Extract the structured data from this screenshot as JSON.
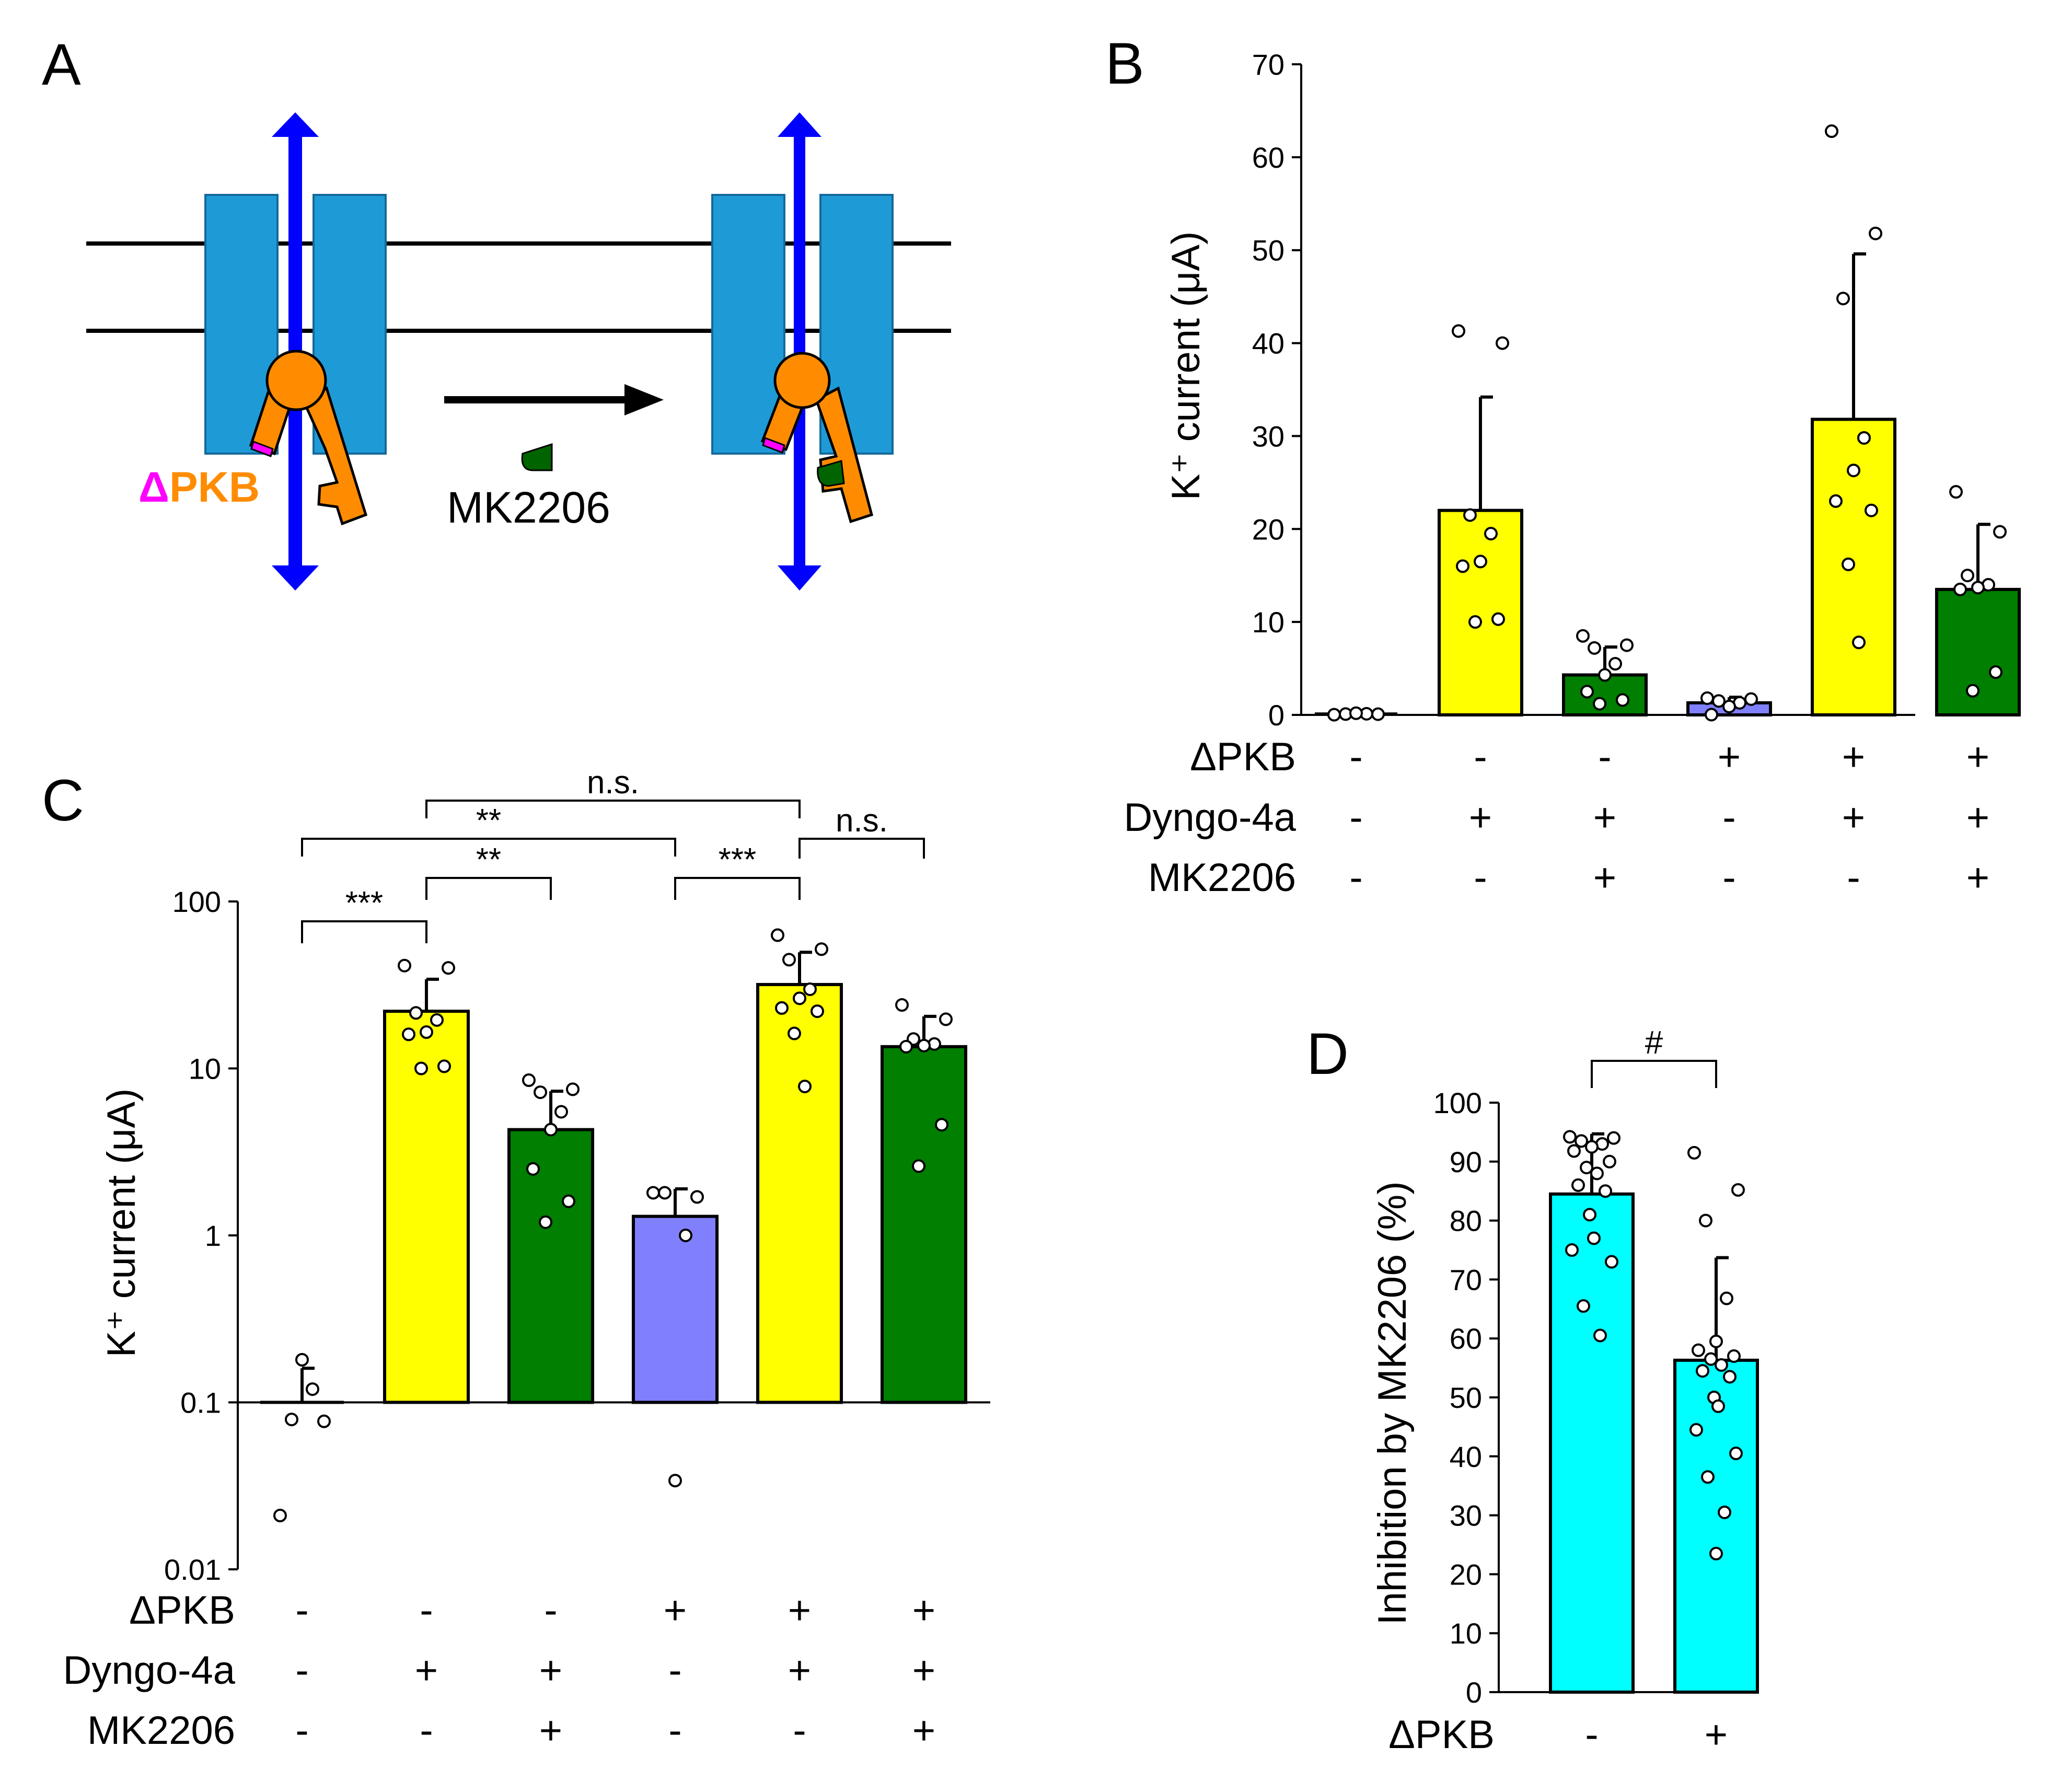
{
  "panels": {
    "A": {
      "letter": "A",
      "delta": "Δ",
      "pkb": "PKB",
      "drug": "MK2206",
      "colors": {
        "channel": "#1E9BD7",
        "axis_arrow": "#0000FF",
        "pkb": "#FF8C00",
        "tag": "#FF00FF",
        "drug": "#006400"
      }
    },
    "B": {
      "letter": "B"
    },
    "C": {
      "letter": "C"
    },
    "D": {
      "letter": "D"
    }
  },
  "conditions": {
    "row_labels": [
      "ΔPKB",
      "Dyngo-4a",
      "MK2206"
    ],
    "columns": [
      [
        "-",
        "-",
        "-"
      ],
      [
        "-",
        "+",
        "-"
      ],
      [
        "-",
        "+",
        "+"
      ],
      [
        "+",
        "-",
        "-"
      ],
      [
        "+",
        "+",
        "-"
      ],
      [
        "+",
        "+",
        "+"
      ]
    ]
  },
  "panel_D_conditions": {
    "row_label": "ΔPKB",
    "columns": [
      "-",
      "+"
    ]
  },
  "significance_C": [
    {
      "from": 0,
      "to": 1,
      "label": "***"
    },
    {
      "from": 1,
      "to": 2,
      "label": "**"
    },
    {
      "from": 3,
      "to": 4,
      "label": "***"
    },
    {
      "from": 4,
      "to": 5,
      "label": "n.s."
    },
    {
      "from": 0,
      "to": 3,
      "label": "**"
    },
    {
      "from": 1,
      "to": 4,
      "label": "n.s."
    }
  ],
  "significance_D": [
    {
      "from": 0,
      "to": 1,
      "label": "#"
    }
  ],
  "chart_data": [
    {
      "panel": "B",
      "type": "bar",
      "ylabel": "K⁺ current (μA)",
      "yscale": "linear",
      "ylim": [
        0,
        70
      ],
      "yticks": [
        0,
        10,
        20,
        30,
        40,
        50,
        60,
        70
      ],
      "bar_colors": [
        "#FFFF00",
        "#FFFF00",
        "#007F00",
        "#8080FF",
        "#FFFF00",
        "#007F00"
      ],
      "values": [
        0.1,
        22,
        4.3,
        1.3,
        31.8,
        13.5
      ],
      "errors": [
        0.06,
        12.2,
        3.0,
        0.6,
        17.8,
        7.0
      ],
      "points": [
        [
          0.02,
          0.08,
          0.09,
          0.12,
          0.18
        ],
        [
          41.3,
          40.0,
          21.5,
          19.5,
          16.5,
          16.0,
          10.3,
          10.0
        ],
        [
          8.5,
          7.5,
          7.2,
          5.5,
          4.3,
          2.5,
          1.6,
          1.2
        ],
        [
          1.8,
          1.7,
          1.5,
          1.3,
          0.9,
          0.03
        ],
        [
          62.8,
          51.8,
          44.8,
          29.8,
          26.3,
          23.0,
          22.0,
          16.2,
          7.8
        ],
        [
          24.0,
          19.7,
          15.0,
          14.0,
          13.7,
          13.5,
          4.6,
          2.6
        ]
      ]
    },
    {
      "panel": "C",
      "type": "bar",
      "ylabel": "K⁺ current (μA)",
      "yscale": "log",
      "ylim": [
        0.01,
        100
      ],
      "yticks": [
        0.01,
        0.1,
        1,
        10,
        100
      ],
      "ytick_labels": [
        "0.01",
        "0.1",
        "1",
        "10",
        "100"
      ],
      "bar_baseline": 0.1,
      "bar_colors": [
        "#FFFF00",
        "#FFFF00",
        "#007F00",
        "#8080FF",
        "#FFFF00",
        "#007F00"
      ],
      "values": [
        0.1,
        22,
        4.3,
        1.3,
        31.8,
        13.5
      ],
      "errors": [
        0.06,
        12.2,
        3.0,
        0.6,
        17.8,
        7.0
      ],
      "points": [
        [
          0.021,
          0.077,
          0.079,
          0.12,
          0.18
        ],
        [
          41.3,
          40.0,
          21.5,
          19.5,
          16.5,
          16.0,
          10.3,
          10.0
        ],
        [
          8.5,
          7.5,
          7.2,
          5.5,
          4.3,
          2.5,
          1.6,
          1.2
        ],
        [
          1.8,
          1.7,
          1.8,
          1.0,
          0.034
        ],
        [
          62.8,
          51.8,
          44.8,
          29.8,
          26.3,
          23.0,
          22.0,
          16.2,
          7.8
        ],
        [
          24.0,
          19.7,
          15.0,
          14.0,
          13.7,
          13.5,
          4.6,
          2.6
        ]
      ]
    },
    {
      "panel": "D",
      "type": "bar",
      "ylabel": "Inhibition by MK2206 (%)",
      "yscale": "linear",
      "ylim": [
        0,
        100
      ],
      "yticks": [
        0,
        10,
        20,
        30,
        40,
        50,
        60,
        70,
        80,
        90,
        100
      ],
      "bar_colors": [
        "#00FFFF",
        "#00FFFF"
      ],
      "values": [
        84.5,
        56.3
      ],
      "errors": [
        10.2,
        17.4
      ],
      "points": [
        [
          94.2,
          94.0,
          93.5,
          93.0,
          92.5,
          91.8,
          90.0,
          89.0,
          88.0,
          86.0,
          85.0,
          81.0,
          77.0,
          75.0,
          73.0,
          65.5,
          60.5
        ],
        [
          91.5,
          85.2,
          80.0,
          66.8,
          59.5,
          58.0,
          57.0,
          56.5,
          55.5,
          54.5,
          53.5,
          50.0,
          48.5,
          44.5,
          40.5,
          36.5,
          30.5,
          23.5
        ]
      ]
    }
  ]
}
